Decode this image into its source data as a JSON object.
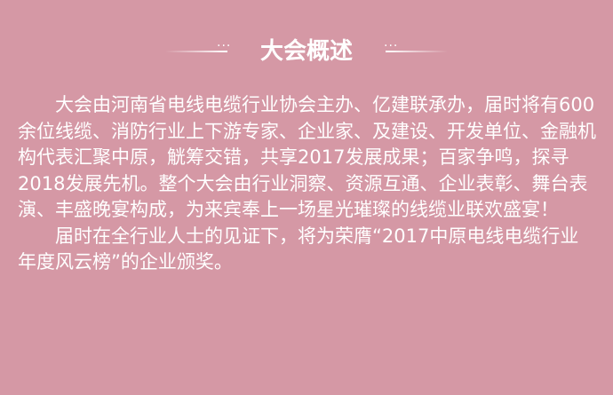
{
  "title": "大会概述",
  "decoration": {
    "dots_left": "···",
    "dots_right": "···"
  },
  "paragraphs": [
    "大会由河南省电线电缆行业协会主办、亿建联承办，届时将有600余位线缆、消防行业上下游专家、企业家、及建设、开发单位、金融机构代表汇聚中原，觥筹交错，共享2017发展成果；百家争鸣，探寻2018发展先机。整个大会由行业洞察、资源互通、企业表彰、舞台表演、丰盛晚宴构成，为来宾奉上一场星光璀璨的线缆业联欢盛宴！",
    "届时在全行业人士的见证下，将为荣膺“2017中原电线电缆行业年度风云榜”的企业颁奖。"
  ]
}
